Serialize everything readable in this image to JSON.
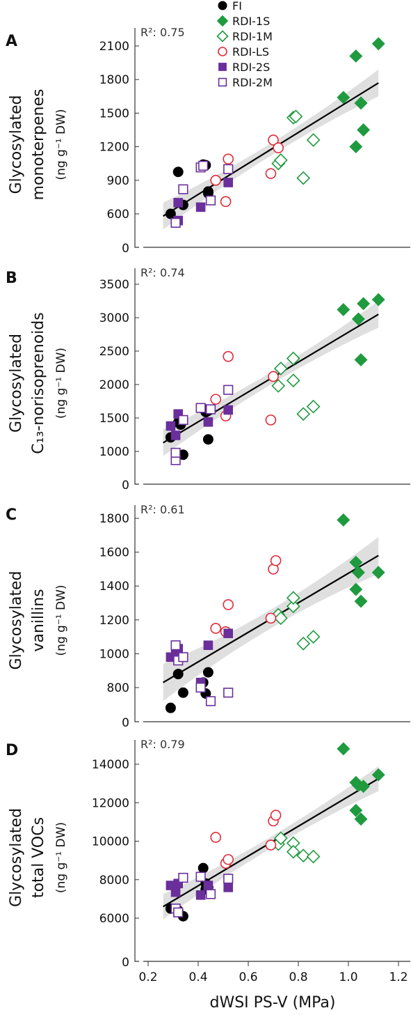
{
  "colors": {
    "FI": "#000000",
    "RDI-1S": "#1f9a3f",
    "RDI-1M": "#1f9a3f",
    "RDI-LS": "#e02a38",
    "RDI-2S": "#6a2f9b",
    "RDI-2M": "#6a2f9b",
    "fit_line": "#000000",
    "ci_band": "#d9d9d9"
  },
  "legend": {
    "placement": "top",
    "entries": [
      {
        "name": "FI",
        "marker": "circle",
        "filled": true,
        "color_key": "FI"
      },
      {
        "name": "RDI-1S",
        "marker": "diamond",
        "filled": true,
        "color_key": "RDI-1S"
      },
      {
        "name": "RDI-1M",
        "marker": "diamond",
        "filled": false,
        "color_key": "RDI-1M"
      },
      {
        "name": "RDI-LS",
        "marker": "circle",
        "filled": false,
        "color_key": "RDI-LS"
      },
      {
        "name": "RDI-2S",
        "marker": "square",
        "filled": true,
        "color_key": "RDI-2S"
      },
      {
        "name": "RDI-2M",
        "marker": "square",
        "filled": false,
        "color_key": "RDI-2M"
      }
    ]
  },
  "shared_x": {
    "label": "dWSI PS-V (MPa)",
    "ticks": [
      "0.2",
      "0.4",
      "0.6",
      "0.8",
      "1.0",
      "1.2"
    ],
    "tick_values": [
      0.2,
      0.4,
      0.6,
      0.8,
      1.0,
      1.2
    ],
    "xlim": [
      0.17,
      1.25
    ]
  },
  "chart_data": [
    {
      "type": "scatter",
      "panel_letter": "A",
      "ylabel_lines": [
        "Glycosylated",
        "monoterpenes"
      ],
      "yunit": "(ng g⁻¹ DW)",
      "r2_text": "R²: 0.75",
      "ylim": [
        0,
        2250
      ],
      "yticks": [
        0,
        600,
        900,
        1200,
        1500,
        1800,
        2100
      ],
      "ytick_labels": [
        "0",
        "600",
        "900",
        "1200",
        "1500",
        "1800",
        "2100"
      ],
      "fit": {
        "x": [
          0.26,
          1.12
        ],
        "y": [
          580,
          1770
        ]
      },
      "band_half_width": {
        "ends": 120,
        "center": 55
      },
      "series": [
        {
          "name": "FI",
          "x": [
            0.29,
            0.32,
            0.34,
            0.42,
            0.43,
            0.44,
            0.44
          ],
          "y": [
            600,
            975,
            680,
            1040,
            1035,
            800,
            785
          ]
        },
        {
          "name": "RDI-1S",
          "x": [
            0.98,
            1.03,
            1.05,
            1.12,
            1.03,
            1.05,
            1.06
          ],
          "y": [
            1640,
            2010,
            1590,
            2120,
            1200,
            1590,
            1350
          ]
        },
        {
          "name": "RDI-1M",
          "x": [
            0.72,
            0.78,
            0.79,
            0.73,
            0.82,
            0.86
          ],
          "y": [
            1050,
            1460,
            1470,
            1080,
            920,
            1260
          ]
        },
        {
          "name": "RDI-LS",
          "x": [
            0.47,
            0.51,
            0.52,
            0.69,
            0.7,
            0.72
          ],
          "y": [
            900,
            710,
            1090,
            960,
            1260,
            1190
          ]
        },
        {
          "name": "RDI-2S",
          "x": [
            0.31,
            0.32,
            0.32,
            0.41,
            0.52
          ],
          "y": [
            520,
            540,
            700,
            660,
            880
          ]
        },
        {
          "name": "RDI-2M",
          "x": [
            0.31,
            0.34,
            0.41,
            0.42,
            0.45,
            0.52
          ],
          "y": [
            520,
            820,
            1015,
            1030,
            720,
            1000
          ]
        }
      ]
    },
    {
      "type": "scatter",
      "panel_letter": "B",
      "ylabel_lines": [
        "Glycosylated",
        "C₁₃-norisoprenoids"
      ],
      "yunit": "(ng g⁻¹ DW)",
      "r2_text": "R²: 0.74",
      "ylim": [
        0,
        3700
      ],
      "yticks": [
        0,
        1000,
        1500,
        2000,
        2500,
        3000,
        3500
      ],
      "ytick_labels": [
        "0",
        "1000",
        "1500",
        "2000",
        "2500",
        "3000",
        "3500"
      ],
      "fit": {
        "x": [
          0.26,
          1.12
        ],
        "y": [
          1130,
          3050
        ]
      },
      "band_half_width": {
        "ends": 200,
        "center": 90
      },
      "series": [
        {
          "name": "FI",
          "x": [
            0.29,
            0.32,
            0.33,
            0.34,
            0.42,
            0.43,
            0.44
          ],
          "y": [
            1210,
            1430,
            1400,
            950,
            1640,
            1590,
            1180
          ]
        },
        {
          "name": "RDI-1S",
          "x": [
            0.98,
            1.04,
            1.06,
            1.12,
            1.05
          ],
          "y": [
            3120,
            2980,
            3210,
            3270,
            2370
          ]
        },
        {
          "name": "RDI-1M",
          "x": [
            0.72,
            0.73,
            0.78,
            0.78,
            0.82,
            0.86
          ],
          "y": [
            1980,
            2240,
            2060,
            2390,
            1560,
            1670
          ]
        },
        {
          "name": "RDI-LS",
          "x": [
            0.47,
            0.51,
            0.52,
            0.69,
            0.7
          ],
          "y": [
            1780,
            1530,
            2420,
            1470,
            2120
          ]
        },
        {
          "name": "RDI-2S",
          "x": [
            0.29,
            0.31,
            0.32,
            0.44,
            0.52
          ],
          "y": [
            1380,
            1240,
            1560,
            1440,
            1620
          ]
        },
        {
          "name": "RDI-2M",
          "x": [
            0.31,
            0.31,
            0.34,
            0.41,
            0.45,
            0.52
          ],
          "y": [
            870,
            980,
            1470,
            1650,
            1630,
            1920
          ]
        }
      ]
    },
    {
      "type": "scatter",
      "panel_letter": "C",
      "ylabel_lines": [
        "Glycosylated",
        "vanillins"
      ],
      "yunit": "(ng g⁻¹ DW)",
      "r2_text": "R²: 0.61",
      "ylim": [
        600,
        1880
      ],
      "yticks": [
        800,
        1000,
        1200,
        1400,
        1600,
        1800
      ],
      "ytick_labels": [
        "800",
        "1000",
        "1200",
        "1400",
        "1600",
        "1800"
      ],
      "y_axis_break_label": "0",
      "fit": {
        "x": [
          0.26,
          1.12
        ],
        "y": [
          830,
          1580
        ]
      },
      "band_half_width": {
        "ends": 110,
        "center": 55
      },
      "series": [
        {
          "name": "FI",
          "x": [
            0.29,
            0.32,
            0.34,
            0.42,
            0.43,
            0.44
          ],
          "y": [
            680,
            880,
            770,
            830,
            765,
            890
          ]
        },
        {
          "name": "RDI-1S",
          "x": [
            0.98,
            1.03,
            1.04,
            1.03,
            1.05,
            1.12
          ],
          "y": [
            1790,
            1540,
            1480,
            1380,
            1310,
            1480
          ]
        },
        {
          "name": "RDI-1M",
          "x": [
            0.72,
            0.73,
            0.78,
            0.78,
            0.82,
            0.86
          ],
          "y": [
            1230,
            1210,
            1280,
            1330,
            1060,
            1100
          ]
        },
        {
          "name": "RDI-LS",
          "x": [
            0.47,
            0.51,
            0.52,
            0.69,
            0.7,
            0.71
          ],
          "y": [
            1150,
            1130,
            1290,
            1210,
            1500,
            1550
          ]
        },
        {
          "name": "RDI-2S",
          "x": [
            0.29,
            0.31,
            0.32,
            0.41,
            0.44,
            0.52
          ],
          "y": [
            980,
            1010,
            1030,
            830,
            1050,
            1120
          ]
        },
        {
          "name": "RDI-2M",
          "x": [
            0.31,
            0.32,
            0.34,
            0.41,
            0.45,
            0.52
          ],
          "y": [
            1050,
            960,
            980,
            800,
            720,
            770
          ]
        }
      ]
    },
    {
      "type": "scatter",
      "panel_letter": "D",
      "ylabel_lines": [
        "Glycosylated",
        "total VOCs"
      ],
      "yunit": "(ng g⁻¹ DW)",
      "r2_text": "R²: 0.79",
      "ylim": [
        5000,
        15100
      ],
      "yticks": [
        6000,
        8000,
        10000,
        12000,
        14000
      ],
      "ytick_labels": [
        "6000",
        "8000",
        "10000",
        "12000",
        "14000"
      ],
      "y_axis_break_label": "0",
      "fit": {
        "x": [
          0.26,
          1.12
        ],
        "y": [
          6600,
          13250
        ]
      },
      "band_half_width": {
        "ends": 650,
        "center": 300
      },
      "series": [
        {
          "name": "FI",
          "x": [
            0.29,
            0.32,
            0.34,
            0.42,
            0.43,
            0.43,
            0.44
          ],
          "y": [
            6500,
            6400,
            6100,
            8600,
            7800,
            7500,
            7600
          ]
        },
        {
          "name": "RDI-1S",
          "x": [
            0.98,
            1.03,
            1.04,
            1.03,
            1.05,
            1.06,
            1.12
          ],
          "y": [
            14800,
            13050,
            12900,
            11600,
            11150,
            12850,
            13450
          ]
        },
        {
          "name": "RDI-1M",
          "x": [
            0.72,
            0.73,
            0.78,
            0.78,
            0.82,
            0.86
          ],
          "y": [
            9850,
            10150,
            9900,
            9450,
            9250,
            9200
          ]
        },
        {
          "name": "RDI-LS",
          "x": [
            0.47,
            0.51,
            0.52,
            0.69,
            0.7,
            0.71
          ],
          "y": [
            10200,
            8850,
            9050,
            9800,
            11050,
            11350
          ]
        },
        {
          "name": "RDI-2S",
          "x": [
            0.29,
            0.31,
            0.32,
            0.41,
            0.44,
            0.52
          ],
          "y": [
            7700,
            7350,
            7800,
            7200,
            7700,
            7600
          ]
        },
        {
          "name": "RDI-2M",
          "x": [
            0.31,
            0.32,
            0.34,
            0.41,
            0.45,
            0.52
          ],
          "y": [
            6500,
            6300,
            8100,
            8150,
            7250,
            8050
          ]
        }
      ]
    }
  ]
}
